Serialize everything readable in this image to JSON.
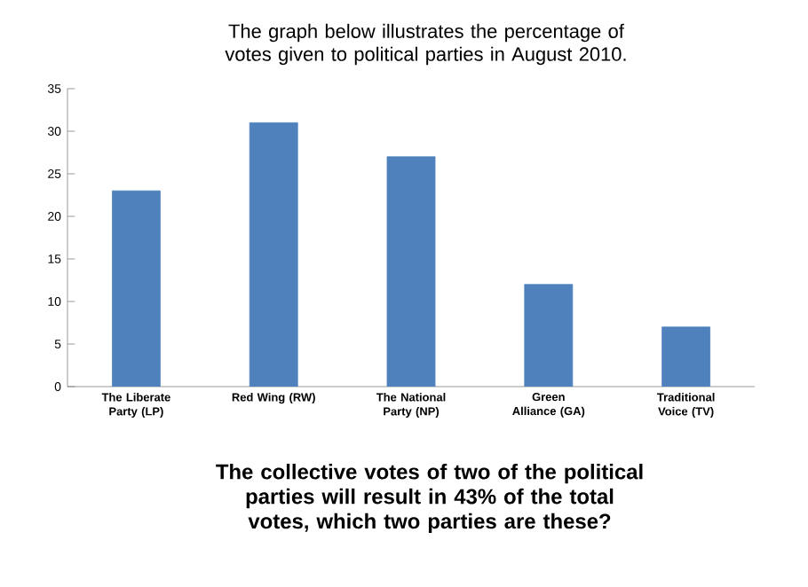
{
  "chart_data": {
    "type": "bar",
    "title": "The graph below illustrates the percentage of votes given to political parties in August 2010.",
    "categories": [
      "The Liberate Party (LP)",
      "Red Wing (RW)",
      "The National Party (NP)",
      "Green Alliance (GA)",
      "Traditional Voice (TV)"
    ],
    "values": [
      23,
      31,
      27,
      12,
      7
    ],
    "color": "#4f81bd",
    "ylim": [
      0,
      35
    ],
    "yticks": [
      0,
      5,
      10,
      15,
      20,
      25,
      30,
      35
    ],
    "annotations": [
      "The collective votes of two of the political parties will result in 43% of the total votes, which two parties are these?"
    ]
  }
}
